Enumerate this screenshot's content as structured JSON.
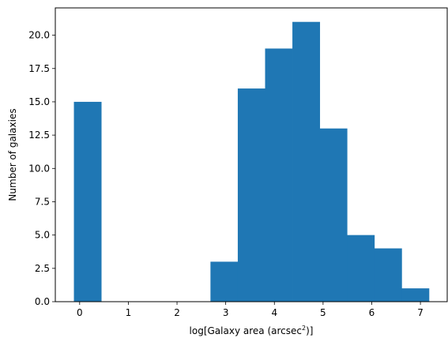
{
  "chart_data": {
    "type": "bar",
    "title": "",
    "xlabel_main": "log[Galaxy area (arcsec",
    "xlabel_sup": "2",
    "xlabel_tail": ")]",
    "ylabel": "Number of galaxies",
    "bin_edges": [
      -0.118,
      0.443,
      1.004,
      1.565,
      2.126,
      2.687,
      3.248,
      3.809,
      4.37,
      4.931,
      5.492,
      6.053,
      6.614,
      7.175
    ],
    "values": [
      15,
      0,
      0,
      0,
      0,
      3,
      16,
      19,
      21,
      13,
      5,
      4,
      1
    ],
    "xlim": [
      -0.5,
      7.55
    ],
    "ylim": [
      0,
      22.05
    ],
    "xticks": [
      0,
      1,
      2,
      3,
      4,
      5,
      6,
      7
    ],
    "xtick_labels": [
      "0",
      "1",
      "2",
      "3",
      "4",
      "5",
      "6",
      "7"
    ],
    "yticks": [
      0,
      2.5,
      5,
      7.5,
      10,
      12.5,
      15,
      17.5,
      20
    ],
    "ytick_labels": [
      "0.0",
      "2.5",
      "5.0",
      "7.5",
      "10.0",
      "12.5",
      "15.0",
      "17.5",
      "20.0"
    ],
    "bar_color": "#1f77b4",
    "grid": false,
    "legend": "none"
  }
}
